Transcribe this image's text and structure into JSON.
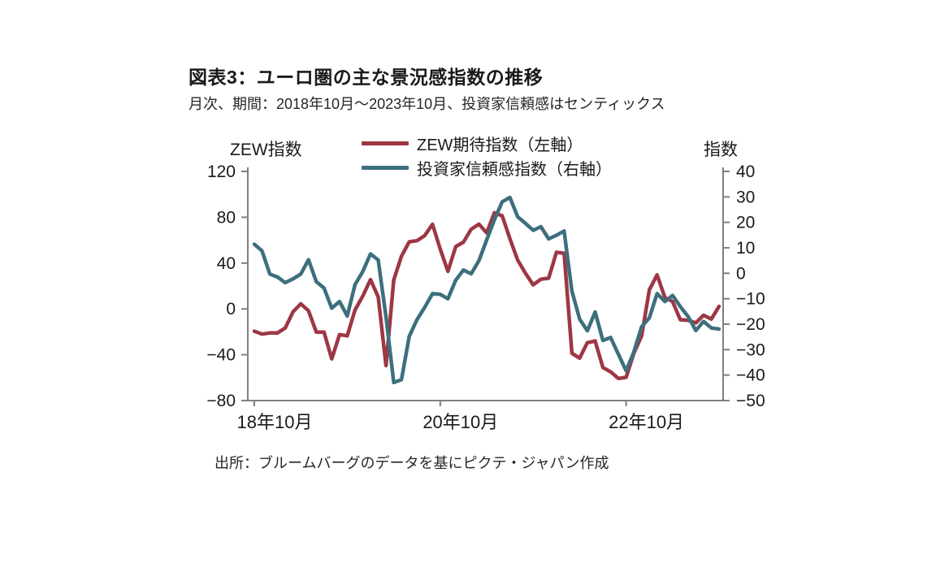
{
  "header": {
    "title": "図表3：ユーロ圏の主な景況感指数の推移",
    "subtitle": "月次、期間：2018年10月～2023年10月、投資家信頼感はセンティックス"
  },
  "legend": {
    "items": [
      {
        "label": "ZEW期待指数（左軸）",
        "color": "#9d3744"
      },
      {
        "label": "投資家信頼感指数（右軸）",
        "color": "#3d6f7d"
      }
    ]
  },
  "axes": {
    "left_title": "ZEW指数",
    "right_title": "指数"
  },
  "footer": {
    "source": "出所：ブルームバーグのデータを基にピクテ・ジャパン作成"
  },
  "chart_data": {
    "type": "line",
    "title": "図表3：ユーロ圏の主な景況感指数の推移",
    "subtitle": "月次、期間：2018年10月～2023年10月、投資家信頼感はセンティックス",
    "x_description": "monthly, 2018-10 through 2023-10 (61 points)",
    "x_tick_labels": [
      "18年10月",
      "20年10月",
      "22年10月"
    ],
    "x_tick_positions": [
      0,
      24,
      48
    ],
    "grid": false,
    "legend_position": "top",
    "axis_color": "#7f7f7f",
    "left_axis": {
      "label": "ZEW指数",
      "min": -80,
      "max": 120,
      "ticks": [
        120,
        80,
        40,
        0,
        -40,
        -80
      ]
    },
    "right_axis": {
      "label": "指数",
      "min": -50,
      "max": 40,
      "ticks": [
        40,
        30,
        20,
        10,
        0,
        -10,
        -20,
        -30,
        -40,
        -50
      ]
    },
    "series": [
      {
        "name": "ZEW期待指数（左軸）",
        "axis": "left",
        "color": "#9d3744",
        "values": [
          -19.4,
          -22.0,
          -21.0,
          -20.9,
          -16.6,
          -2.5,
          4.5,
          -1.6,
          -20.2,
          -20.3,
          -43.6,
          -22.4,
          -23.5,
          -1.0,
          11.2,
          25.6,
          10.4,
          -49.5,
          25.2,
          46.0,
          58.6,
          59.6,
          64.0,
          73.9,
          52.3,
          32.8,
          54.4,
          58.3,
          69.6,
          74.0,
          66.3,
          84.0,
          81.3,
          61.2,
          42.7,
          31.1,
          21.0,
          25.9,
          26.8,
          49.4,
          48.6,
          -38.7,
          -43.0,
          -29.5,
          -28.0,
          -51.1,
          -54.9,
          -60.7,
          -59.7,
          -38.7,
          -23.6,
          16.7,
          29.7,
          10.0,
          6.4,
          -9.4,
          -10.0,
          -12.2,
          -5.5,
          -8.9,
          2.3
        ]
      },
      {
        "name": "投資家信頼感指数（右軸）",
        "axis": "right",
        "color": "#3d6f7d",
        "values": [
          11.4,
          8.8,
          -0.3,
          -1.5,
          -3.7,
          -2.2,
          -0.3,
          5.3,
          -3.3,
          -5.8,
          -13.7,
          -11.1,
          -16.8,
          -4.5,
          0.7,
          7.6,
          5.2,
          -17.1,
          -42.9,
          -41.8,
          -24.8,
          -18.2,
          -13.4,
          -8.0,
          -8.3,
          -10.0,
          -2.7,
          1.3,
          -0.2,
          5.0,
          13.1,
          21.0,
          28.1,
          29.8,
          22.2,
          19.6,
          16.9,
          18.3,
          13.5,
          14.9,
          16.6,
          -7.0,
          -18.0,
          -22.6,
          -15.2,
          -26.4,
          -25.2,
          -31.8,
          -38.3,
          -30.9,
          -21.0,
          -17.5,
          -8.0,
          -11.1,
          -8.7,
          -13.1,
          -17.0,
          -22.5,
          -18.9,
          -21.5,
          -21.9
        ]
      }
    ],
    "source": "出所：ブルームバーグのデータを基にピクテ・ジャパン作成"
  }
}
